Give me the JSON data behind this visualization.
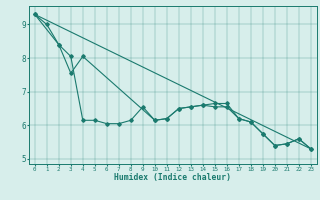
{
  "xlabel": "Humidex (Indice chaleur)",
  "bg_color": "#d7eeeb",
  "line_color": "#1a7a6e",
  "xlim": [
    -0.5,
    23.5
  ],
  "ylim": [
    4.85,
    9.55
  ],
  "yticks": [
    5,
    6,
    7,
    8,
    9
  ],
  "xticks": [
    0,
    1,
    2,
    3,
    4,
    5,
    6,
    7,
    8,
    9,
    10,
    11,
    12,
    13,
    14,
    15,
    16,
    17,
    18,
    19,
    20,
    21,
    22,
    23
  ],
  "series1_x": [
    0,
    1,
    2,
    3,
    4,
    5,
    6,
    7,
    8,
    9,
    10,
    11,
    12,
    13,
    14,
    15,
    16,
    17,
    18,
    19,
    20,
    21,
    22,
    23
  ],
  "series1_y": [
    9.3,
    9.0,
    8.4,
    8.05,
    6.15,
    6.15,
    6.05,
    6.05,
    6.15,
    6.55,
    6.15,
    6.2,
    6.5,
    6.55,
    6.6,
    6.55,
    6.55,
    6.2,
    6.1,
    5.75,
    5.4,
    5.45,
    5.6,
    5.3
  ],
  "series2_x": [
    0,
    2,
    3,
    4,
    10,
    11,
    12,
    13,
    14,
    15,
    16,
    17,
    18,
    19,
    20,
    21,
    22,
    23
  ],
  "series2_y": [
    9.3,
    8.4,
    7.55,
    8.05,
    6.15,
    6.2,
    6.5,
    6.55,
    6.6,
    6.65,
    6.65,
    6.2,
    6.1,
    5.75,
    5.4,
    5.45,
    5.6,
    5.3
  ],
  "series3_x": [
    0,
    23
  ],
  "series3_y": [
    9.3,
    5.3
  ]
}
